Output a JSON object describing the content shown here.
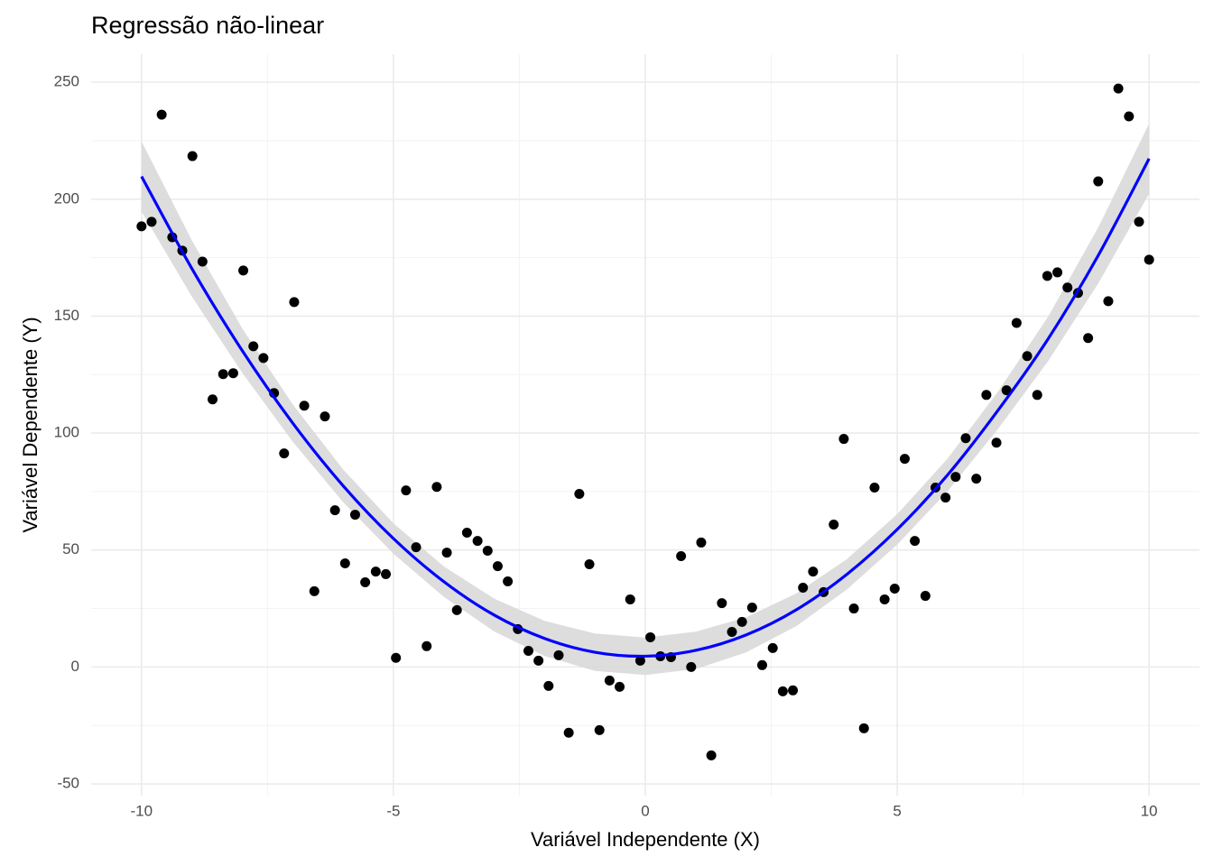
{
  "chart_data": {
    "type": "scatter",
    "title": "Regressão não-linear",
    "x_label": "Variável Independente (X)",
    "y_label": "Variável Dependente (Y)",
    "xlim": [
      -11,
      11
    ],
    "ylim": [
      -55,
      262
    ],
    "xticks": [
      -10,
      -5,
      0,
      5,
      10
    ],
    "yticks": [
      -50,
      0,
      50,
      100,
      150,
      200,
      250
    ],
    "grid": true,
    "color": "#000000",
    "x": [
      -10,
      -9.8,
      -9.6,
      -9.39,
      -9.19,
      -8.99,
      -8.79,
      -8.59,
      -8.38,
      -8.18,
      -7.98,
      -7.78,
      -7.58,
      -7.37,
      -7.17,
      -6.97,
      -6.77,
      -6.57,
      -6.36,
      -6.16,
      -5.96,
      -5.76,
      -5.56,
      -5.35,
      -5.15,
      -4.95,
      -4.75,
      -4.55,
      -4.34,
      -4.14,
      -3.94,
      -3.74,
      -3.54,
      -3.33,
      -3.13,
      -2.93,
      -2.73,
      -2.53,
      -2.32,
      -2.12,
      -1.92,
      -1.72,
      -1.52,
      -1.31,
      -1.11,
      -0.91,
      -0.71,
      -0.51,
      -0.3,
      -0.1,
      0.1,
      0.3,
      0.51,
      0.71,
      0.91,
      1.11,
      1.31,
      1.52,
      1.72,
      1.92,
      2.12,
      2.32,
      2.53,
      2.73,
      2.93,
      3.13,
      3.33,
      3.54,
      3.74,
      3.94,
      4.14,
      4.34,
      4.55,
      4.75,
      4.95,
      5.15,
      5.35,
      5.56,
      5.76,
      5.96,
      6.16,
      6.36,
      6.57,
      6.77,
      6.97,
      7.17,
      7.37,
      7.58,
      7.78,
      7.98,
      8.18,
      8.38,
      8.59,
      8.79,
      8.99,
      9.19,
      9.39,
      9.6,
      9.8,
      10
    ],
    "y": [
      188.4,
      190.3,
      236.1,
      183.7,
      178.0,
      218.4,
      173.3,
      114.4,
      125.2,
      125.6,
      169.5,
      137.1,
      132.1,
      117.1,
      91.3,
      156.0,
      111.7,
      32.4,
      107.1,
      67.0,
      44.3,
      65.1,
      36.2,
      40.8,
      39.7,
      3.9,
      75.5,
      51.2,
      8.9,
      77.0,
      48.9,
      24.3,
      57.4,
      53.9,
      49.7,
      43.1,
      36.6,
      16.2,
      6.9,
      2.7,
      -8.1,
      5.0,
      -28.1,
      74.0,
      43.9,
      -27.0,
      -5.8,
      -8.5,
      28.9,
      2.7,
      12.7,
      4.6,
      4.2,
      47.4,
      0,
      53.2,
      -37.8,
      27.3,
      15.0,
      19.3,
      25.4,
      0.8,
      8.1,
      -10.4,
      -10.0,
      33.9,
      40.8,
      32.0,
      60.9,
      97.5,
      25.0,
      -26.2,
      76.7,
      28.9,
      33.5,
      89.0,
      53.9,
      30.4,
      76.7,
      72.4,
      81.3,
      97.8,
      80.5,
      116.3,
      95.9,
      118.3,
      147.1,
      132.9,
      116.3,
      167.2,
      168.7,
      162.2,
      159.9,
      140.6,
      207.6,
      156.4,
      247.3,
      235.4,
      190.3,
      174.1
    ],
    "fit": {
      "color": "#0000ff",
      "band_color": "#d9d9d9",
      "x": [
        -10,
        -9,
        -8,
        -7,
        -6,
        -5,
        -4,
        -3,
        -2,
        -1,
        0,
        1,
        2,
        3,
        4,
        5,
        6,
        7,
        8,
        9,
        10
      ],
      "y": [
        209.7,
        170.3,
        135.2,
        104.3,
        77.5,
        54.9,
        36.5,
        22.2,
        12.2,
        6.3,
        4.6,
        7.1,
        13.7,
        24.5,
        39.6,
        58.8,
        82.1,
        109.7,
        140.4,
        176.3,
        217.3
      ],
      "lower": [
        194.7,
        158.3,
        125.7,
        96.3,
        70.5,
        48.4,
        30.0,
        15.2,
        4.7,
        -1.7,
        -3.4,
        -0.9,
        6.2,
        17.5,
        33.1,
        52.3,
        75.1,
        101.7,
        130.9,
        164.3,
        202.3
      ],
      "upper": [
        224.7,
        182.3,
        144.7,
        112.3,
        84.5,
        61.4,
        43.0,
        29.2,
        19.7,
        14.3,
        12.6,
        15.1,
        21.2,
        31.5,
        46.1,
        65.3,
        89.1,
        117.7,
        149.9,
        188.3,
        232.3
      ]
    }
  }
}
